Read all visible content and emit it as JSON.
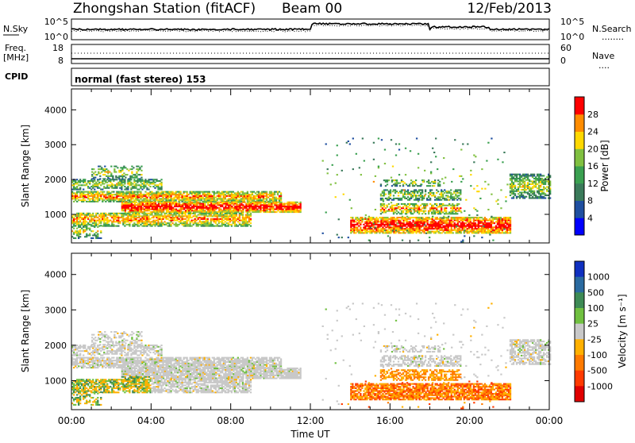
{
  "header": {
    "title": "Zhongshan Station (fitACF)",
    "beam": "Beam 00",
    "date": "12/Feb/2013"
  },
  "top_panel": {
    "left_label": "N.Sky",
    "left_ticks": [
      "10^5",
      "10^0"
    ],
    "right_ticks": [
      "10^5",
      "10^0"
    ],
    "right_label": "N.Search",
    "right_legend": "........"
  },
  "freq_panel": {
    "label_top": "Freq.",
    "label_unit": "[MHz]",
    "left_ticks": [
      "18",
      "8"
    ],
    "right_ticks": [
      "60",
      "0"
    ],
    "right_label": "Nave",
    "right_legend": "...."
  },
  "cpid": {
    "label": "CPID",
    "mode": "normal (fast stereo) 153"
  },
  "time_axis": {
    "label": "Time UT",
    "ticks": [
      "00:00",
      "04:00",
      "08:00",
      "12:00",
      "16:00",
      "20:00",
      "00:00"
    ]
  },
  "chart_data": [
    {
      "type": "heatmap",
      "name": "power",
      "ylabel": "Slant Range [km]",
      "yticks": [
        "1000",
        "2000",
        "3000",
        "4000"
      ],
      "ylim": [
        180,
        4600
      ],
      "xlim": [
        0,
        24
      ],
      "colorbar_label": "Power [dB]",
      "colorbar_ticks": [
        "4",
        "8",
        "12",
        "16",
        "20",
        "24",
        "28"
      ],
      "colors": [
        "#0000ff",
        "#1f4fa0",
        "#3a7a5a",
        "#3aa050",
        "#80c040",
        "#ffd800",
        "#ff8c00",
        "#ff0000"
      ]
    },
    {
      "type": "heatmap",
      "name": "velocity",
      "ylabel": "Slant Range [km]",
      "yticks": [
        "1000",
        "2000",
        "3000",
        "4000"
      ],
      "ylim": [
        180,
        4600
      ],
      "xlim": [
        0,
        24
      ],
      "colorbar_label": "Velocity [m s⁻¹]",
      "colorbar_ticks": [
        "1000",
        "500",
        "100",
        "25",
        "-25",
        "-100",
        "-500",
        "-1000"
      ],
      "colors": [
        "#1030c0",
        "#2a6aa0",
        "#3d8a55",
        "#70c040",
        "#c8c8c8",
        "#ffb000",
        "#ff7a00",
        "#ff3a00",
        "#e00000"
      ]
    }
  ]
}
